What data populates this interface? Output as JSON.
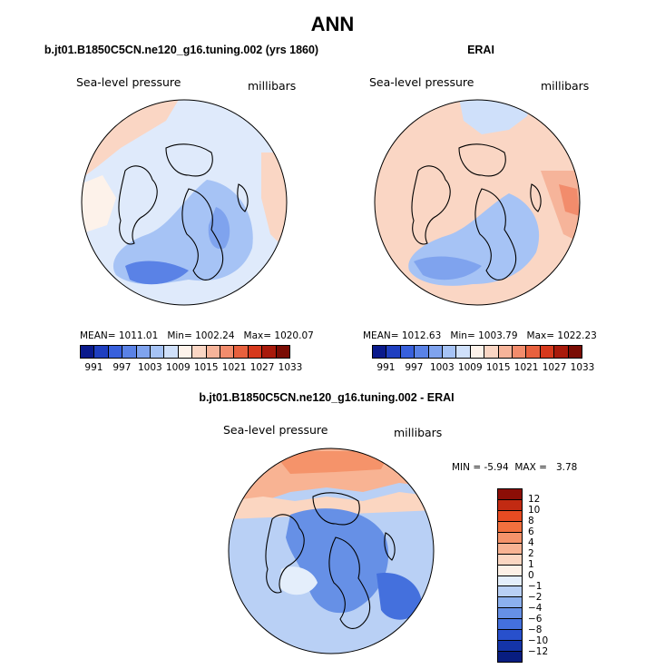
{
  "figure_title": "ANN",
  "panels": [
    {
      "title": "b.jt01.B1850C5CN.ne120_g16.tuning.002 (yrs 1860)",
      "variable": "Sea-level pressure",
      "units": "millibars",
      "stats": {
        "mean_label": "MEAN=",
        "mean": "1011.01",
        "min_label": "Min=",
        "min": "1002.24",
        "max_label": "Max=",
        "max": "1020.07"
      },
      "colorbar_ticks": [
        "991",
        "997",
        "1003",
        "1009",
        "1015",
        "1021",
        "1027",
        "1033"
      ]
    },
    {
      "title": "ERAI",
      "variable": "Sea-level pressure",
      "units": "millibars",
      "stats": {
        "mean_label": "MEAN=",
        "mean": "1012.63",
        "min_label": "Min=",
        "min": "1003.79",
        "max_label": "Max=",
        "max": "1022.23"
      },
      "colorbar_ticks": [
        "991",
        "997",
        "1003",
        "1009",
        "1015",
        "1021",
        "1027",
        "1033"
      ]
    },
    {
      "title": "b.jt01.B1850C5CN.ne120_g16.tuning.002 - ERAI",
      "variable": "Sea-level pressure",
      "units": "millibars",
      "stats": {
        "min_label": "MIN =",
        "min": "-5.94",
        "max_label": "MAX =",
        "max": "3.78"
      },
      "colorbar_ticks": [
        "12",
        "10",
        "8",
        "6",
        "4",
        "2",
        "1",
        "0",
        "−1",
        "−2",
        "−4",
        "−6",
        "−8",
        "−10",
        "−12"
      ]
    }
  ],
  "colors": {
    "abs_scale": [
      "#0a1a8c",
      "#1f3fc0",
      "#3860dc",
      "#5a82e6",
      "#7fa3ee",
      "#a6c3f5",
      "#cfe0fa",
      "#fdf2ea",
      "#fad6c4",
      "#f6b49a",
      "#f28c6c",
      "#e8613e",
      "#d6391c",
      "#a81a0b",
      "#7a0c04"
    ],
    "diff_scale": [
      "#8c0e06",
      "#c22a12",
      "#e84b22",
      "#f2703e",
      "#f5936a",
      "#f8b393",
      "#fbd6c1",
      "#fdf0e6",
      "#e4eefb",
      "#b9d0f5",
      "#8cb0ee",
      "#6690e6",
      "#4470dd",
      "#2850cc",
      "#1434a8",
      "#081d80"
    ]
  }
}
